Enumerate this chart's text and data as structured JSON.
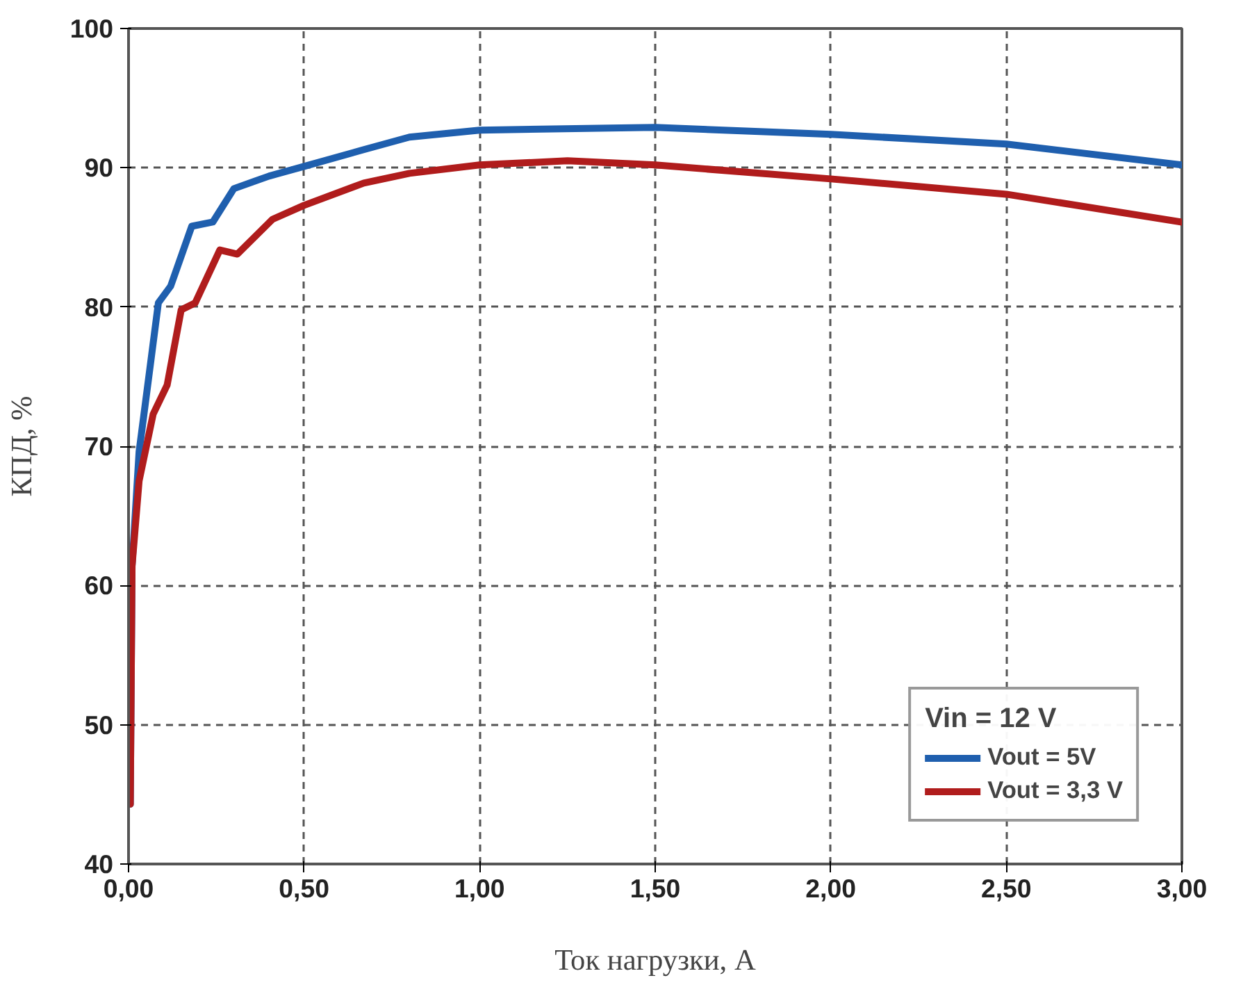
{
  "chart_data": {
    "type": "line",
    "xlabel": "Ток нагрузки, А",
    "ylabel": "КПД, %",
    "legend_title": "Vin = 12 V",
    "legend": "bottom right",
    "grid": true,
    "line_style": "solid",
    "xlim": [
      0,
      3
    ],
    "ylim": [
      40,
      100
    ],
    "xticks": [
      {
        "value": 0,
        "label": "0,00"
      },
      {
        "value": 0.5,
        "label": "0,50"
      },
      {
        "value": 1,
        "label": "1,00"
      },
      {
        "value": 1.5,
        "label": "1,50"
      },
      {
        "value": 2,
        "label": "2,00"
      },
      {
        "value": 2.5,
        "label": "2,50"
      },
      {
        "value": 3,
        "label": "3,00"
      }
    ],
    "yticks": [
      40,
      50,
      60,
      70,
      80,
      90,
      100
    ],
    "series": [
      {
        "name": "Vout = 5V",
        "color": "#1f5fae",
        "x": [
          0.005,
          0.01,
          0.03,
          0.085,
          0.12,
          0.18,
          0.24,
          0.3,
          0.4,
          0.5,
          0.67,
          0.8,
          1.0,
          1.5,
          2.0,
          2.5,
          3.0
        ],
        "values": [
          44.3,
          61.4,
          69.6,
          80.3,
          81.5,
          85.8,
          86.1,
          88.5,
          89.4,
          90.1,
          91.3,
          92.2,
          92.7,
          92.9,
          92.4,
          91.7,
          90.2
        ]
      },
      {
        "name": "Vout = 3,3 V",
        "color": "#b01c1c",
        "x": [
          0.005,
          0.01,
          0.03,
          0.07,
          0.11,
          0.15,
          0.19,
          0.26,
          0.31,
          0.41,
          0.5,
          0.67,
          0.8,
          1.0,
          1.25,
          1.5,
          2.0,
          2.5,
          3.0
        ],
        "values": [
          44.3,
          61.4,
          67.5,
          72.3,
          74.4,
          79.8,
          80.3,
          84.1,
          83.8,
          86.3,
          87.3,
          88.9,
          89.6,
          90.2,
          90.5,
          90.2,
          89.2,
          88.1,
          86.1
        ]
      }
    ]
  }
}
